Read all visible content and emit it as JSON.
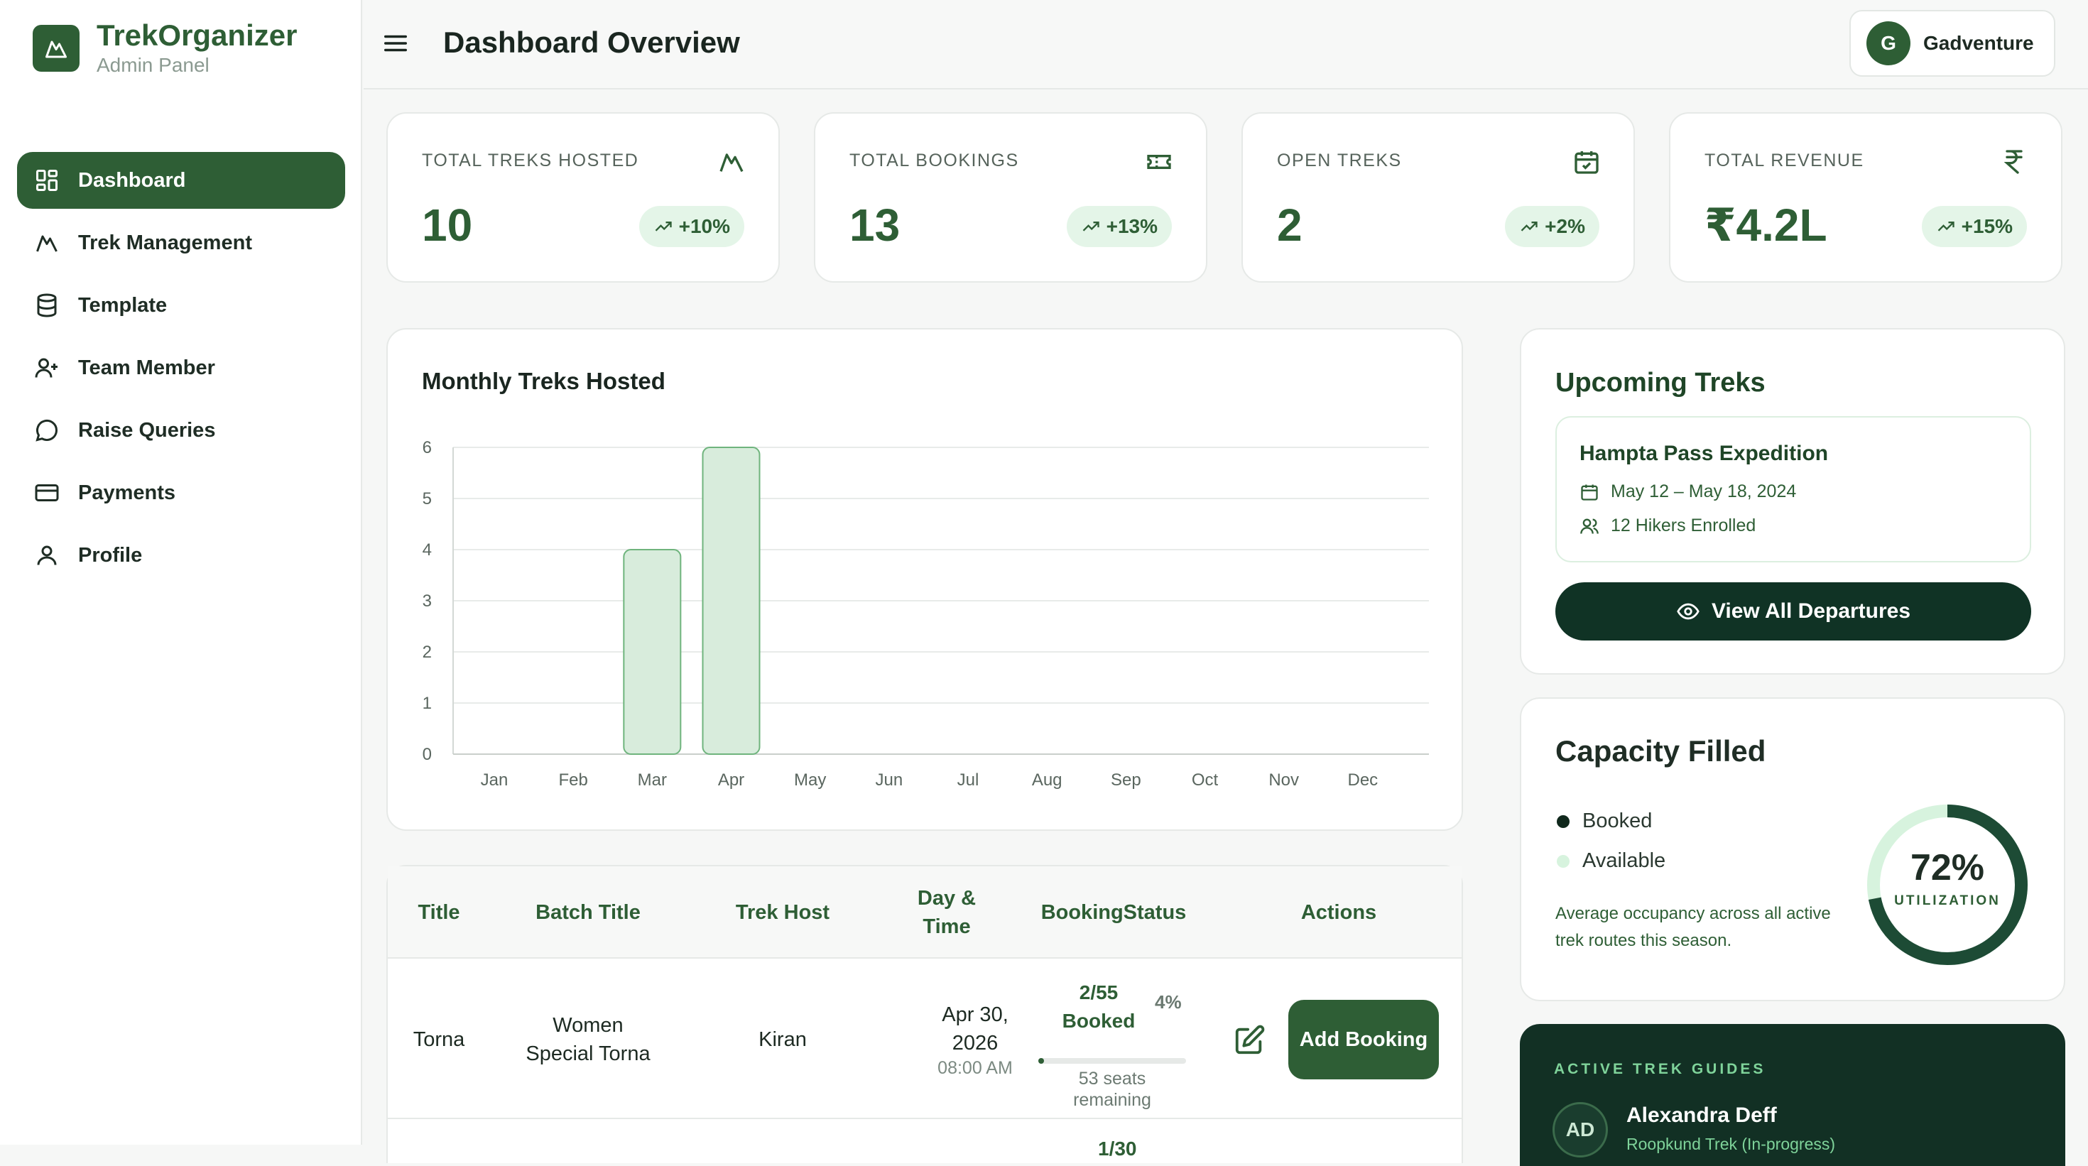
{
  "brand": {
    "title": "TrekOrganizer",
    "subtitle": "Admin Panel"
  },
  "sidebar": {
    "items": [
      {
        "label": "Dashboard",
        "icon": "dashboard-icon",
        "active": true
      },
      {
        "label": "Trek Management",
        "icon": "mountain-icon"
      },
      {
        "label": "Template",
        "icon": "database-icon"
      },
      {
        "label": "Team Member",
        "icon": "user-plus-icon"
      },
      {
        "label": "Raise Queries",
        "icon": "message-icon"
      },
      {
        "label": "Payments",
        "icon": "credit-card-icon"
      },
      {
        "label": "Profile",
        "icon": "user-icon"
      }
    ]
  },
  "header": {
    "title": "Dashboard Overview",
    "user_initial": "G",
    "user_name": "Gadventure"
  },
  "stats": [
    {
      "label": "TOTAL TREKS HOSTED",
      "value": "10",
      "change": "+10%",
      "icon": "mountain-icon"
    },
    {
      "label": "TOTAL BOOKINGS",
      "value": "13",
      "change": "+13%",
      "icon": "ticket-icon"
    },
    {
      "label": "OPEN TREKS",
      "value": "2",
      "change": "+2%",
      "icon": "calendar-check-icon"
    },
    {
      "label": "TOTAL REVENUE",
      "value": "₹4.2L",
      "change": "+15%",
      "icon": "rupee-icon"
    }
  ],
  "chart": {
    "title": "Monthly Treks Hosted"
  },
  "chart_data": {
    "type": "bar",
    "title": "Monthly Treks Hosted",
    "categories": [
      "Jan",
      "Feb",
      "Mar",
      "Apr",
      "May",
      "Jun",
      "Jul",
      "Aug",
      "Sep",
      "Oct",
      "Nov",
      "Dec"
    ],
    "values": [
      0,
      0,
      4,
      6,
      0,
      0,
      0,
      0,
      0,
      0,
      0,
      0
    ],
    "yticks": [
      "0",
      "1",
      "2",
      "3",
      "4",
      "5",
      "6"
    ],
    "ylim": [
      0,
      6
    ],
    "grid": true,
    "bar_color": "#d8ecdc",
    "bar_stroke": "#6fb47d"
  },
  "table": {
    "headers": [
      "Title",
      "Batch Title",
      "Trek Host",
      "Day & Time",
      "BookingStatus",
      "Actions"
    ],
    "rows": [
      {
        "title": "Torna",
        "batch": "Women Special Torna",
        "host": "Kiran",
        "date": "Apr 30, 2026",
        "time": "08:00 AM",
        "booking_frac": "2/55",
        "booking_word": "Booked",
        "booking_pct": "4%",
        "booking_progress": 0.04,
        "seats_remaining": "53 seats remaining",
        "action_label": "Add Booking"
      }
    ],
    "next_row_frac": "1/30"
  },
  "upcoming": {
    "title": "Upcoming Treks",
    "trek_name": "Hampta Pass Expedition",
    "dates": "May 12 – May 18, 2024",
    "hikers": "12 Hikers Enrolled",
    "button": "View All Departures"
  },
  "capacity": {
    "title": "Capacity Filled",
    "legend_booked": "Booked",
    "legend_available": "Available",
    "note": "Average occupancy across all active trek routes this season.",
    "percent": "72%",
    "percent_value": 0.72,
    "label": "UTILIZATION",
    "color_booked": "#1d4b35",
    "color_available": "#d7f3de"
  },
  "guides": {
    "label": "ACTIVE TREK GUIDES",
    "initials": "AD",
    "name": "Alexandra Deff",
    "sub": "Roopkund Trek (In-progress)"
  }
}
